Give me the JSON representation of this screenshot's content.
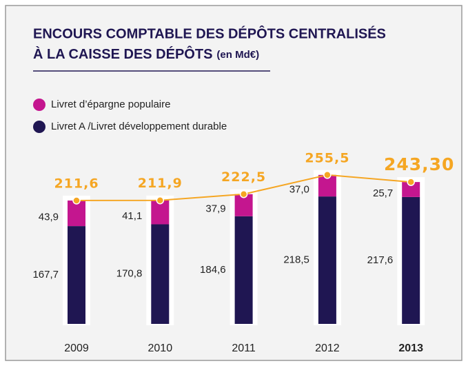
{
  "chart_data": {
    "type": "stacked-bar-line",
    "title": [
      "ENCOURS COMPTABLE DES DÉPÔTS CENTRALISÉS",
      "À LA CAISSE DES DÉPÔTS"
    ],
    "unit": "(en Md€)",
    "categories": [
      "2009",
      "2010",
      "2011",
      "2012",
      "2013"
    ],
    "series": [
      {
        "name": "Livret A /Livret développement durable",
        "color": "#1f1652",
        "values": [
          167.7,
          170.8,
          184.6,
          218.5,
          217.6
        ],
        "value_labels": [
          "167,7",
          "170,8",
          "184,6",
          "218,5",
          "217,6"
        ]
      },
      {
        "name": "Livret d’épargne populaire",
        "color": "#c4168f",
        "values": [
          43.9,
          41.1,
          37.9,
          37.0,
          25.7
        ],
        "value_labels": [
          "43,9",
          "41,1",
          "37,9",
          "37,0",
          "25,7"
        ]
      }
    ],
    "totals": {
      "color": "#f5a623",
      "values": [
        211.6,
        211.9,
        222.5,
        255.5,
        243.3
      ],
      "value_labels": [
        "211,6",
        "211,9",
        "222,5",
        "255,5",
        "243,30"
      ]
    },
    "ylim": [
      0,
      260
    ]
  }
}
